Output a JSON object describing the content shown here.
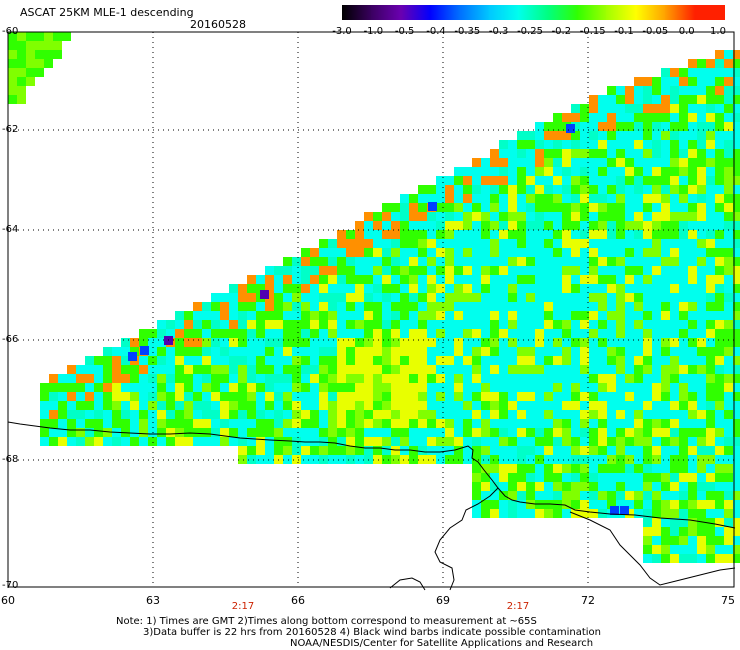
{
  "header": {
    "title": "ASCAT 25KM MLE-1 descending",
    "date": "20160528"
  },
  "colorbar": {
    "labels": [
      "-3.0",
      "-1.0",
      "-0.5",
      "-0.4",
      "-0.35",
      "-0.3",
      "-0.25",
      "-0.2",
      "-0.15",
      "-0.1",
      "-0.05",
      "0.0",
      "1.0"
    ],
    "colors": [
      "#000000",
      "#3a0060",
      "#6a00b0",
      "#0000ff",
      "#0070ff",
      "#00c8ff",
      "#00ffee",
      "#00ff80",
      "#30ff00",
      "#a0ff00",
      "#ffff00",
      "#ffa000",
      "#ff2000"
    ]
  },
  "axes": {
    "lat_ticks": [
      "-60",
      "-62",
      "-64",
      "-66",
      "-68",
      "-70"
    ],
    "lon_ticks": [
      "60",
      "63",
      "66",
      "69",
      "72",
      "75"
    ],
    "time_labels": [
      "2:17",
      "2:17"
    ]
  },
  "notes": {
    "line1": "Note: 1) Times are GMT 2)Times along bottom correspond to measurement at ~65S",
    "line2": "3)Data buffer is 22 hrs from 20160528 4) Black wind barbs indicate possible contamination",
    "line3": "NOAA/NESDIS/Center for Satellite Applications and Research"
  },
  "map_colors": {
    "cyan": "#00ffee",
    "lightcyan": "#00ffc8",
    "green": "#30ff00",
    "lime": "#80ff00",
    "yellow": "#e8ff00",
    "orange": "#ff9000",
    "blue": "#0040ff",
    "purple": "#5000b0",
    "coast": "#000000",
    "grid": "#000000"
  }
}
